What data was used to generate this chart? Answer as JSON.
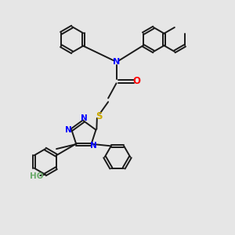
{
  "background_color": "#e6e6e6",
  "bond_color": "#1a1a1a",
  "n_color": "#0000ff",
  "o_color": "#ff0000",
  "s_color": "#ccaa00",
  "ho_color": "#6aaa6a",
  "figsize": [
    3.0,
    3.0
  ],
  "dpi": 100,
  "xlim": [
    0,
    10
  ],
  "ylim": [
    0,
    10
  ]
}
